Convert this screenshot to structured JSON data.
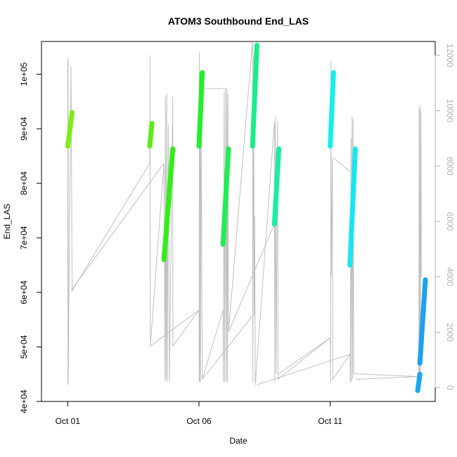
{
  "chart_data": {
    "type": "line",
    "title": "ATOM3 Southbound End_LAS",
    "xlabel": "Date",
    "ylabel": "End_LAS",
    "x_ticks": [
      {
        "date": "2023-10-01",
        "label": "Oct 01"
      },
      {
        "date": "2023-10-06",
        "label": "Oct 06"
      },
      {
        "date": "2023-10-11",
        "label": "Oct 11"
      }
    ],
    "xlim": [
      "2022-09-30T00:00",
      "2022-10-15T00:00"
    ],
    "ylim": [
      40000,
      106000
    ],
    "y_ticks": [
      {
        "value": 40000,
        "label": "4e+04"
      },
      {
        "value": 50000,
        "label": "5e+04"
      },
      {
        "value": 60000,
        "label": "6e+04"
      },
      {
        "value": 70000,
        "label": "7e+04"
      },
      {
        "value": 80000,
        "label": "8e+04"
      },
      {
        "value": 90000,
        "label": "9e+04"
      },
      {
        "value": 100000,
        "label": "1e+05"
      }
    ],
    "y2lim": [
      -500,
      12500
    ],
    "y2_ticks": [
      {
        "value": 0,
        "label": "0"
      },
      {
        "value": 2000,
        "label": "2000"
      },
      {
        "value": 4000,
        "label": "4000"
      },
      {
        "value": 6000,
        "label": "6000"
      },
      {
        "value": 8000,
        "label": "8000"
      },
      {
        "value": 10000,
        "label": "10000"
      },
      {
        "value": 12000,
        "label": "12000"
      }
    ],
    "grid": false,
    "background_trace": {
      "axis": "secondary",
      "color": "#c0c0c0",
      "points": [
        [
          "2022-10-01T00:00",
          11800
        ],
        [
          "2022-10-01T00:10",
          100
        ],
        [
          "2022-10-01T00:20",
          11900
        ],
        [
          "2022-10-01T00:30",
          200
        ],
        [
          "2022-10-01T01:00",
          3000
        ],
        [
          "2022-10-01T03:00",
          11600
        ],
        [
          "2022-10-01T04:00",
          3500
        ],
        [
          "2022-10-04T03:00",
          8100
        ],
        [
          "2022-10-04T03:10",
          12000
        ],
        [
          "2022-10-04T03:20",
          6000
        ],
        [
          "2022-10-04T03:30",
          1500
        ],
        [
          "2022-10-04T16:00",
          8100
        ],
        [
          "2022-10-04T17:00",
          200
        ],
        [
          "2022-10-04T17:20",
          10500
        ],
        [
          "2022-10-04T18:00",
          300
        ],
        [
          "2022-10-04T18:30",
          10600
        ],
        [
          "2022-10-04T19:00",
          200
        ],
        [
          "2022-10-04T20:00",
          9500
        ],
        [
          "2022-10-04T21:00",
          200
        ],
        [
          "2022-10-05T00:00",
          10500
        ],
        [
          "2022-10-05T00:10",
          1500
        ],
        [
          "2022-10-06T00:00",
          2800
        ],
        [
          "2022-10-06T00:10",
          200
        ],
        [
          "2022-10-06T00:20",
          12100
        ],
        [
          "2022-10-06T00:40",
          200
        ],
        [
          "2022-10-06T01:00",
          11100
        ],
        [
          "2022-10-06T01:20",
          200
        ],
        [
          "2022-10-06T02:00",
          10500
        ],
        [
          "2022-10-06T03:00",
          300
        ],
        [
          "2022-10-06T22:00",
          2800
        ],
        [
          "2022-10-06T22:20",
          200
        ],
        [
          "2022-10-06T23:00",
          10700
        ],
        [
          "2022-10-06T23:30",
          200
        ],
        [
          "2022-10-07T00:30",
          10800
        ],
        [
          "2022-10-07T01:00",
          200
        ],
        [
          "2022-10-07T01:30",
          10800
        ],
        [
          "2022-10-07T02:00",
          200
        ],
        [
          "2022-10-07T02:30",
          10600
        ],
        [
          "2022-10-07T03:00",
          2000
        ],
        [
          "2022-10-08T01:00",
          12500
        ],
        [
          "2022-10-08T01:20",
          200
        ],
        [
          "2022-10-08T02:00",
          12000
        ],
        [
          "2022-10-08T02:30",
          2600
        ],
        [
          "2022-10-08T03:00",
          6200
        ],
        [
          "2022-10-08T03:30",
          100
        ],
        [
          "2022-10-08T21:00",
          9600
        ],
        [
          "2022-10-08T21:20",
          200
        ],
        [
          "2022-10-08T22:00",
          9800
        ],
        [
          "2022-10-08T22:30",
          500
        ],
        [
          "2022-10-09T00:00",
          9600
        ],
        [
          "2022-10-09T00:20",
          300
        ],
        [
          "2022-10-11T00:00",
          1800
        ],
        [
          "2022-10-11T00:20",
          200
        ],
        [
          "2022-10-11T00:40",
          11800
        ],
        [
          "2022-10-11T01:00",
          4000
        ],
        [
          "2022-10-11T02:00",
          8300
        ],
        [
          "2022-10-11T02:20",
          300
        ],
        [
          "2022-10-11T18:00",
          1200
        ],
        [
          "2022-10-11T18:20",
          200
        ],
        [
          "2022-10-11T19:00",
          9000
        ],
        [
          "2022-10-11T19:20",
          200
        ],
        [
          "2022-10-11T20:00",
          9800
        ],
        [
          "2022-10-11T20:30",
          300
        ],
        [
          "2022-10-11T21:00",
          9700
        ],
        [
          "2022-10-11T21:30",
          500
        ],
        [
          "2022-10-14T09:00",
          400
        ],
        [
          "2022-10-14T09:20",
          10100
        ],
        [
          "2022-10-14T09:40",
          100
        ],
        [
          "2022-10-14T10:00",
          10200
        ],
        [
          "2022-10-14T10:20",
          200
        ],
        [
          "2022-10-14T11:00",
          10000
        ],
        [
          "2022-10-14T11:20",
          4000
        ]
      ]
    },
    "series": [
      {
        "color": "#7fec1a",
        "x": [
          "2022-10-01T00:00",
          "2022-10-01T04:00"
        ],
        "y": [
          86800,
          93000
        ]
      },
      {
        "color": "#5ced18",
        "x": [
          "2022-10-04T03:00",
          "2022-10-04T05:00"
        ],
        "y": [
          86800,
          91000
        ]
      },
      {
        "color": "#32ee16",
        "x": [
          "2022-10-04T16:00",
          "2022-10-05T00:00"
        ],
        "y": [
          66000,
          86300
        ]
      },
      {
        "color": "#22ee2a",
        "x": [
          "2022-10-06T00:00",
          "2022-10-06T03:00"
        ],
        "y": [
          86800,
          100300
        ]
      },
      {
        "color": "#20ee52",
        "x": [
          "2022-10-06T22:00",
          "2022-10-07T03:00"
        ],
        "y": [
          68800,
          86300
        ]
      },
      {
        "color": "#18ee8a",
        "x": [
          "2022-10-08T01:00",
          "2022-10-08T05:00"
        ],
        "y": [
          86800,
          105300
        ]
      },
      {
        "color": "#18eea2",
        "x": [
          "2022-10-08T21:00",
          "2022-10-09T01:00"
        ],
        "y": [
          72500,
          86300
        ]
      },
      {
        "color": "#16eeee",
        "x": [
          "2022-10-11T00:00",
          "2022-10-11T03:00"
        ],
        "y": [
          86800,
          100300
        ]
      },
      {
        "color": "#18e6f2",
        "x": [
          "2022-10-11T18:00",
          "2022-10-11T23:00"
        ],
        "y": [
          65000,
          86300
        ]
      },
      {
        "color": "#1aa8ee",
        "x": [
          "2022-10-14T08:00",
          "2022-10-14T10:00"
        ],
        "y": [
          42000,
          45000
        ]
      },
      {
        "color": "#1ca2f0",
        "x": [
          "2022-10-14T10:00",
          "2022-10-14T15:00"
        ],
        "y": [
          47000,
          62300
        ]
      }
    ],
    "connectors": {
      "axis": "secondary",
      "color": "#c0c0c0",
      "segments": [
        [
          [
            "2022-10-01T03:00",
            3500
          ],
          [
            "2022-10-04T16:00",
            8100
          ]
        ],
        [
          [
            "2022-10-04T03:30",
            1500
          ],
          [
            "2022-10-06T00:00",
            2800
          ]
        ],
        [
          [
            "2022-10-06T00:40",
            10800
          ],
          [
            "2022-10-07T00:30",
            10800
          ]
        ],
        [
          [
            "2022-10-06T03:00",
            300
          ],
          [
            "2022-10-08T01:00",
            2600
          ]
        ],
        [
          [
            "2022-10-07T03:00",
            2000
          ],
          [
            "2022-10-09T00:00",
            6200
          ]
        ],
        [
          [
            "2022-10-08T05:00",
            100
          ],
          [
            "2022-10-11T18:00",
            1200
          ]
        ],
        [
          [
            "2022-10-09T01:00",
            500
          ],
          [
            "2022-10-11T00:00",
            1800
          ]
        ],
        [
          [
            "2022-10-11T03:00",
            8300
          ],
          [
            "2022-10-11T18:00",
            7800
          ]
        ],
        [
          [
            "2022-10-11T23:00",
            300
          ],
          [
            "2022-10-14T09:00",
            400
          ]
        ]
      ]
    }
  }
}
